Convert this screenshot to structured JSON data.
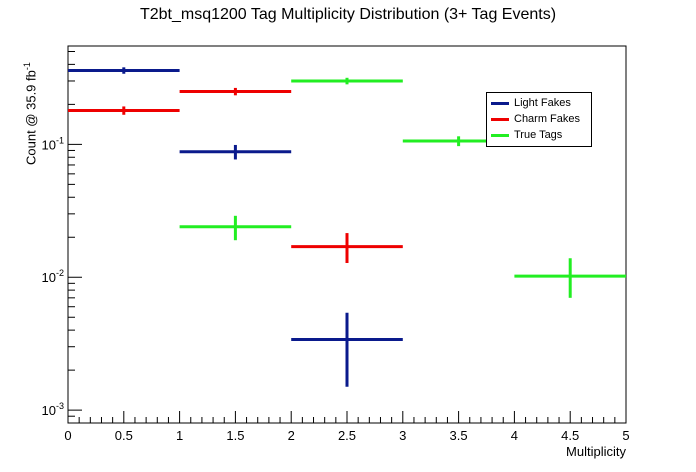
{
  "chart_data": {
    "type": "errorbar-histogram",
    "title": "T2bt_msq1200 Tag Multiplicity Distribution (3+ Tag Events)",
    "xlabel": "Multiplicity",
    "ylabel_base": "Count @ 35.9 fb",
    "ylabel_sup": "-1",
    "xlim": [
      0,
      5
    ],
    "ylim": [
      0.0008,
      0.55
    ],
    "yscale": "log",
    "x_ticks": [
      "0",
      "0.5",
      "1",
      "1.5",
      "2",
      "2.5",
      "3",
      "3.5",
      "4",
      "4.5",
      "5"
    ],
    "y_ticks": [
      {
        "value": 0.001,
        "base": "10",
        "exp": "-3"
      },
      {
        "value": 0.01,
        "base": "10",
        "exp": "-2"
      },
      {
        "value": 0.1,
        "base": "10",
        "exp": "-1"
      }
    ],
    "legend_position": "top-right",
    "series": [
      {
        "name": "Light Fakes",
        "color": "#0a1a8c",
        "bins": [
          {
            "x": 0.5,
            "y": 0.36,
            "err": 0.02
          },
          {
            "x": 1.5,
            "y": 0.088,
            "err": 0.011
          },
          {
            "x": 2.5,
            "y": 0.0034,
            "err_low": 0.0019,
            "err_high": 0.002
          }
        ]
      },
      {
        "name": "Charm Fakes",
        "color": "#ee0000",
        "bins": [
          {
            "x": 0.5,
            "y": 0.18,
            "err": 0.013
          },
          {
            "x": 1.5,
            "y": 0.25,
            "err": 0.016
          },
          {
            "x": 2.5,
            "y": 0.017,
            "err_low": 0.0042,
            "err_high": 0.0045
          }
        ]
      },
      {
        "name": "True Tags",
        "color": "#22ee22",
        "bins": [
          {
            "x": 1.5,
            "y": 0.024,
            "err": 0.005
          },
          {
            "x": 2.5,
            "y": 0.3,
            "err": 0.017
          },
          {
            "x": 3.5,
            "y": 0.106,
            "err": 0.009
          },
          {
            "x": 4.5,
            "y": 0.0102,
            "err_low": 0.0032,
            "err_high": 0.0037
          }
        ]
      }
    ]
  }
}
